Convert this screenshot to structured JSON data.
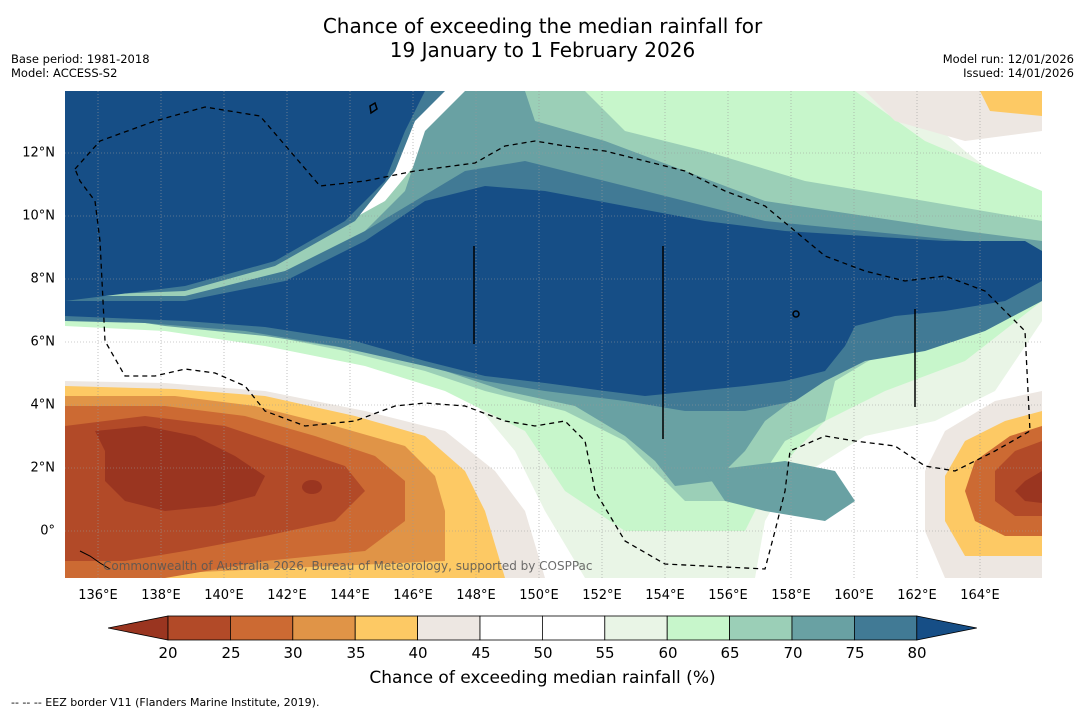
{
  "title_line1": "Chance of exceeding the median rainfall for",
  "title_line2": "19 January to 1 February 2026",
  "base_period": "Base period: 1981-2018",
  "model": "Model: ACCESS-S2",
  "model_run": "Model run: 12/01/2026",
  "issued": "Issued: 14/01/2026",
  "x_ticks": [
    "136°E",
    "138°E",
    "140°E",
    "142°E",
    "144°E",
    "146°E",
    "148°E",
    "150°E",
    "152°E",
    "154°E",
    "156°E",
    "158°E",
    "160°E",
    "162°E",
    "164°E"
  ],
  "y_ticks": [
    "12°N",
    "10°N",
    "8°N",
    "6°N",
    "4°N",
    "2°N",
    "0°"
  ],
  "copyright": "Commonwealth of Australia 2026, Bureau of Meteorology, supported by COSPPac",
  "colorbar": {
    "labels": [
      "20",
      "25",
      "30",
      "35",
      "40",
      "45",
      "50",
      "55",
      "60",
      "65",
      "70",
      "75",
      "80"
    ],
    "colors": [
      "#9a3520",
      "#b24a28",
      "#cc6a33",
      "#e09447",
      "#fdc964",
      "#ede7e2",
      "#ffffff",
      "#ffffff",
      "#e9f5e6",
      "#c7f6cb",
      "#9bcfb7",
      "#69a1a3",
      "#417a95",
      "#164e86"
    ],
    "title": "Chance of exceeding median rainfall (%)"
  },
  "legend": "--  --  -- EEZ border V11 (Flanders Marine Institute, 2019)."
}
